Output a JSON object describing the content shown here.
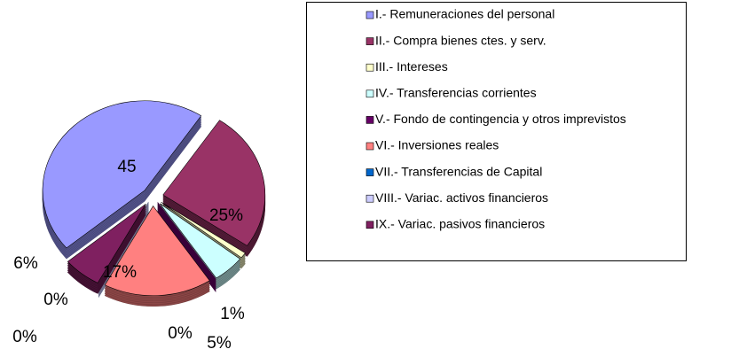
{
  "chart_data": {
    "type": "pie",
    "categories": [
      "I.- Remuneraciones del personal",
      "II.- Compra bienes ctes. y serv.",
      "III.- Intereses",
      "IV.- Transferencias corrientes",
      "V.- Fondo de contingencia y otros imprevistos",
      "VI.- Inversiones reales",
      "VII.- Transferencias de Capital",
      "VIII.- Variac. activos financieros",
      "IX.- Variac. pasivos financieros"
    ],
    "values": [
      45,
      25,
      1,
      5,
      0,
      17,
      0,
      0,
      6
    ],
    "value_labels": [
      "45",
      "25%",
      "1%",
      "5%",
      "0%",
      "17%",
      "0%",
      "0%",
      "6%"
    ],
    "colors": [
      "#9999ff",
      "#993366",
      "#ffffcc",
      "#ccffff",
      "#660066",
      "#ff8080",
      "#0066cc",
      "#ccccff",
      "#7f2060"
    ],
    "legend": "right"
  }
}
